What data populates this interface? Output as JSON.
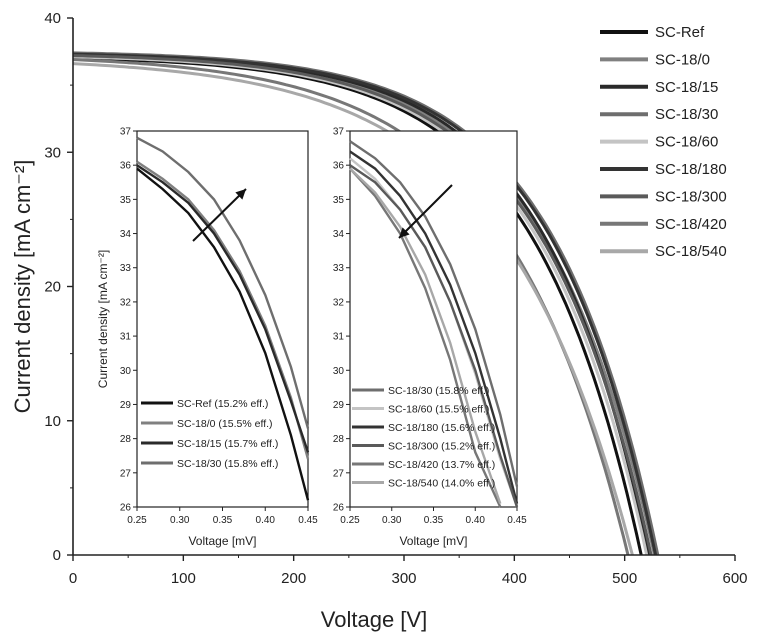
{
  "chart_data": [
    {
      "type": "line",
      "xlabel": "Voltage [V]",
      "ylabel": "Current density [mA cm⁻²]",
      "xlim": [
        0,
        600
      ],
      "ylim": [
        0,
        40
      ],
      "xticks": [
        "0",
        "100",
        "200",
        "300",
        "400",
        "500",
        "600"
      ],
      "yticks": [
        "0",
        "10",
        "20",
        "30",
        "40"
      ],
      "legend_position": "top-right",
      "series": [
        {
          "name": "SC-Ref",
          "color": "#111111",
          "jsc": 37.0,
          "voc": 515,
          "knee": 0.19
        },
        {
          "name": "SC-18/0",
          "color": "#808080",
          "jsc": 37.3,
          "voc": 527,
          "knee": 0.19
        },
        {
          "name": "SC-18/15",
          "color": "#2a2a2a",
          "jsc": 37.2,
          "voc": 522,
          "knee": 0.18
        },
        {
          "name": "SC-18/30",
          "color": "#6e6e6e",
          "jsc": 37.4,
          "voc": 530,
          "knee": 0.18
        },
        {
          "name": "SC-18/60",
          "color": "#c4c4c4",
          "jsc": 37.1,
          "voc": 520,
          "knee": 0.19
        },
        {
          "name": "SC-18/180",
          "color": "#333333",
          "jsc": 37.3,
          "voc": 528,
          "knee": 0.18
        },
        {
          "name": "SC-18/300",
          "color": "#5a5a5a",
          "jsc": 37.2,
          "voc": 524,
          "knee": 0.19
        },
        {
          "name": "SC-18/420",
          "color": "#777777",
          "jsc": 36.9,
          "voc": 503,
          "knee": 0.22
        },
        {
          "name": "SC-18/540",
          "color": "#a8a8a8",
          "jsc": 36.6,
          "voc": 507,
          "knee": 0.23
        }
      ]
    },
    {
      "type": "line",
      "xlabel": "Voltage [mV]",
      "ylabel": "Current density [mA cm⁻²]",
      "xlim": [
        0.25,
        0.45
      ],
      "ylim": [
        26,
        37
      ],
      "xticks": [
        "0.25",
        "0.30",
        "0.35",
        "0.40",
        "0.45"
      ],
      "yticks": [
        "26",
        "27",
        "28",
        "29",
        "30",
        "31",
        "32",
        "33",
        "34",
        "35",
        "36",
        "37"
      ],
      "legend_position": "bottom-left",
      "series": [
        {
          "name": "SC-Ref",
          "eff": "(15.2% eff.)",
          "color": "#111111",
          "x": [
            0.25,
            0.28,
            0.31,
            0.34,
            0.37,
            0.4,
            0.43,
            0.45
          ],
          "y": [
            35.9,
            35.3,
            34.6,
            33.6,
            32.3,
            30.5,
            28.1,
            26.2
          ]
        },
        {
          "name": "SC-18/0",
          "eff": "(15.5% eff.)",
          "color": "#808080",
          "x": [
            0.25,
            0.28,
            0.31,
            0.34,
            0.37,
            0.4,
            0.43,
            0.45
          ],
          "y": [
            36.1,
            35.6,
            35.0,
            34.1,
            32.9,
            31.3,
            29.2,
            27.4
          ]
        },
        {
          "name": "SC-18/15",
          "eff": "(15.7% eff.)",
          "color": "#2a2a2a",
          "x": [
            0.25,
            0.28,
            0.31,
            0.34,
            0.37,
            0.4,
            0.43,
            0.45
          ],
          "y": [
            36.0,
            35.5,
            34.9,
            34.0,
            32.8,
            31.2,
            29.1,
            27.6
          ]
        },
        {
          "name": "SC-18/30",
          "eff": "(15.8% eff.)",
          "color": "#6e6e6e",
          "x": [
            0.25,
            0.28,
            0.31,
            0.34,
            0.37,
            0.4,
            0.43,
            0.45
          ],
          "y": [
            36.8,
            36.4,
            35.8,
            35.0,
            33.8,
            32.2,
            30.1,
            28.3
          ]
        }
      ],
      "annotations": [
        "arrow pointing up-right"
      ]
    },
    {
      "type": "line",
      "xlabel": "Voltage [mV]",
      "ylabel": "",
      "xlim": [
        0.25,
        0.45
      ],
      "ylim": [
        26,
        37
      ],
      "xticks": [
        "0.25",
        "0.30",
        "0.35",
        "0.40",
        "0.45"
      ],
      "yticks": [
        "26",
        "27",
        "28",
        "29",
        "30",
        "31",
        "32",
        "33",
        "34",
        "35",
        "36",
        "37"
      ],
      "legend_position": "bottom-left",
      "series": [
        {
          "name": "SC-18/30",
          "eff": "(15.8% eff.)",
          "color": "#6e6e6e",
          "x": [
            0.25,
            0.28,
            0.31,
            0.34,
            0.37,
            0.4,
            0.43,
            0.45
          ],
          "y": [
            36.7,
            36.2,
            35.5,
            34.5,
            33.1,
            31.2,
            28.7,
            26.6
          ]
        },
        {
          "name": "SC-18/60",
          "eff": "(15.5% eff.)",
          "color": "#c4c4c4",
          "x": [
            0.25,
            0.28,
            0.31,
            0.34,
            0.37,
            0.4,
            0.43,
            0.45
          ],
          "y": [
            36.2,
            35.6,
            34.7,
            33.6,
            32.0,
            29.9,
            27.4,
            26.0
          ]
        },
        {
          "name": "SC-18/180",
          "eff": "(15.6% eff.)",
          "color": "#333333",
          "x": [
            0.25,
            0.28,
            0.31,
            0.34,
            0.37,
            0.4,
            0.43,
            0.45
          ],
          "y": [
            36.4,
            35.9,
            35.1,
            34.0,
            32.5,
            30.5,
            28.0,
            26.1
          ]
        },
        {
          "name": "SC-18/300",
          "eff": "(15.2% eff.)",
          "color": "#5a5a5a",
          "x": [
            0.25,
            0.28,
            0.31,
            0.34,
            0.37,
            0.4,
            0.43,
            0.45
          ],
          "y": [
            36.0,
            35.5,
            34.7,
            33.6,
            32.0,
            30.0,
            27.5,
            26.0
          ]
        },
        {
          "name": "SC-18/420",
          "eff": "(13.7% eff.)",
          "color": "#777777",
          "x": [
            0.25,
            0.28,
            0.31,
            0.34,
            0.37,
            0.4,
            0.43
          ],
          "y": [
            35.9,
            35.1,
            34.0,
            32.4,
            30.3,
            27.6,
            26.0
          ]
        },
        {
          "name": "SC-18/540",
          "eff": "(14.0% eff.)",
          "color": "#a8a8a8",
          "x": [
            0.25,
            0.28,
            0.31,
            0.34,
            0.37,
            0.4,
            0.43
          ],
          "y": [
            35.9,
            35.2,
            34.2,
            32.8,
            30.8,
            28.2,
            26.1
          ]
        }
      ],
      "annotations": [
        "arrow pointing down-left"
      ]
    }
  ]
}
